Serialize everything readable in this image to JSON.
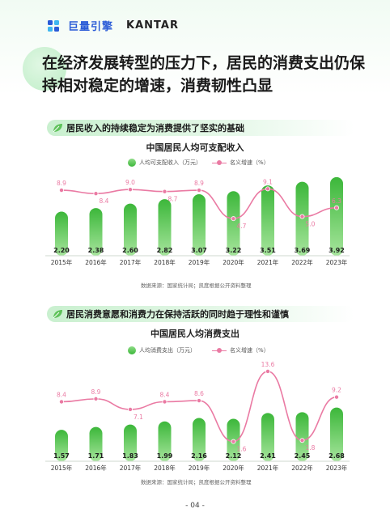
{
  "header": {
    "brand_cn": "巨量引擎",
    "brand_en": "KANTAR"
  },
  "main_title": "在经济发展转型的压力下，居民的消费支出仍保持相对稳定的增速，消费韧性凸显",
  "section1": {
    "heading": "居民收入的持续稳定为消费提供了坚实的基础"
  },
  "section2": {
    "heading": "居民消费意愿和消费力在保持活跃的同时趋于理性和谨慎"
  },
  "page_number": "- 04 -",
  "colors": {
    "bar": "#3cb73a",
    "bar_light": "#a6e59c",
    "line": "#ea7aa3",
    "accent": "#2a5bd7"
  },
  "chart_data": [
    {
      "type": "bar",
      "title": "中国居民人均可支配收入",
      "categories": [
        "2015年",
        "2016年",
        "2017年",
        "2018年",
        "2019年",
        "2020年",
        "2021年",
        "2022年",
        "2023年"
      ],
      "series": [
        {
          "name": "人均可支配收入（万元）",
          "type": "bar",
          "values": [
            2.2,
            2.38,
            2.6,
            2.82,
            3.07,
            3.22,
            3.51,
            3.69,
            3.92
          ],
          "labels": [
            "2.20",
            "2.38",
            "2.60",
            "2.82",
            "3.07",
            "3.22",
            "3.51",
            "3.69",
            "3.92"
          ]
        },
        {
          "name": "名义增速（%）",
          "type": "line",
          "values": [
            8.9,
            8.4,
            9.0,
            8.7,
            8.9,
            4.7,
            9.1,
            5.0,
            6.3
          ],
          "labels": [
            "8.9",
            "8.4",
            "9.0",
            "8.7",
            "8.9",
            "4.7",
            "9.1",
            "5.0",
            "6.3"
          ]
        }
      ],
      "source": "数据来源：国家统计局；凯度根据公开资料整理"
    },
    {
      "type": "bar",
      "title": "中国居民人均消费支出",
      "categories": [
        "2015年",
        "2016年",
        "2017年",
        "2018年",
        "2019年",
        "2020年",
        "2021年",
        "2022年",
        "2023年"
      ],
      "series": [
        {
          "name": "人均消费支出（万元）",
          "type": "bar",
          "values": [
            1.57,
            1.71,
            1.83,
            1.99,
            2.16,
            2.12,
            2.41,
            2.45,
            2.68
          ],
          "labels": [
            "1.57",
            "1.71",
            "1.83",
            "1.99",
            "2.16",
            "2.12",
            "2.41",
            "2.45",
            "2.68"
          ]
        },
        {
          "name": "名义增速（%）",
          "type": "line",
          "values": [
            8.4,
            8.9,
            7.1,
            8.4,
            8.6,
            1.6,
            13.6,
            1.8,
            9.2
          ],
          "labels": [
            "8.4",
            "8.9",
            "7.1",
            "8.4",
            "8.6",
            "1.6",
            "13.6",
            "1.8",
            "9.2"
          ]
        }
      ],
      "source": "数据来源：国家统计局；凯度根据公开资料整理"
    }
  ]
}
